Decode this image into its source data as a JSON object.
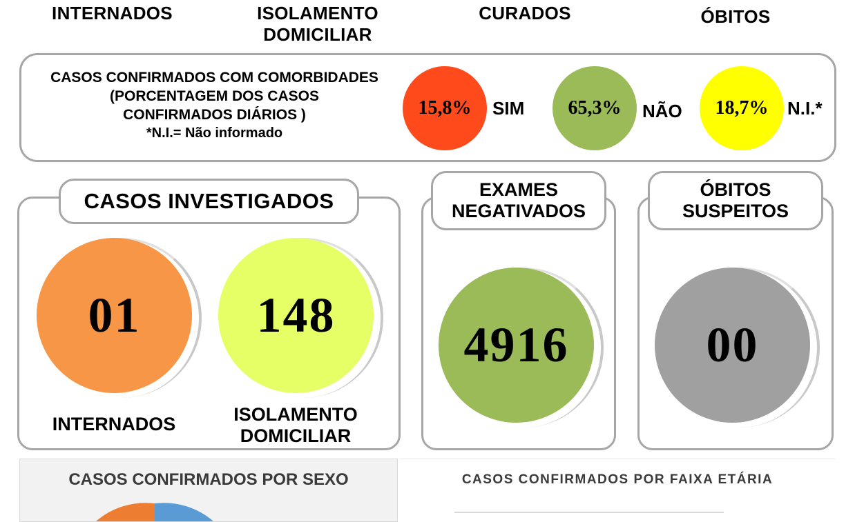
{
  "top_headers": {
    "internados": "INTERNADOS",
    "isolamento": "ISOLAMENTO\nDOMICILIAR",
    "curados": "CURADOS",
    "obitos": "ÓBITOS"
  },
  "comorbidades": {
    "title_line1": "CASOS CONFIRMADOS COM COMORBIDADES",
    "title_line2": "(PORCENTAGEM DOS CASOS",
    "title_line3": "CONFIRMADOS DIÁRIOS )",
    "footnote": "*N.I.= Não informado",
    "items": [
      {
        "value": "15,8%",
        "label": "SIM",
        "color": "#ff4a1c"
      },
      {
        "value": "65,3%",
        "label": "NÃO",
        "color": "#9bbb59"
      },
      {
        "value": "18,7%",
        "label": "N.I.*",
        "color": "#ffff00"
      }
    ]
  },
  "investigados": {
    "title": "CASOS INVESTIGADOS",
    "internados_value": "01",
    "internados_label": "INTERNADOS",
    "internados_color": "#f79646",
    "isolamento_value": "148",
    "isolamento_label_line1": "ISOLAMENTO",
    "isolamento_label_line2": "DOMICILIAR",
    "isolamento_color": "#e6ff66"
  },
  "exames": {
    "title_line1": "EXAMES",
    "title_line2": "NEGATIVADOS",
    "value": "4916",
    "color": "#9bbb59"
  },
  "obitos_suspeitos": {
    "title_line1": "ÓBITOS",
    "title_line2": "SUSPEITOS",
    "value": "00",
    "color": "#a0a0a0"
  },
  "bottom": {
    "sexo_title": "CASOS CONFIRMADOS POR SEXO",
    "faixa_title": "CASOS CONFIRMADOS POR FAIXA ETÁRIA"
  }
}
